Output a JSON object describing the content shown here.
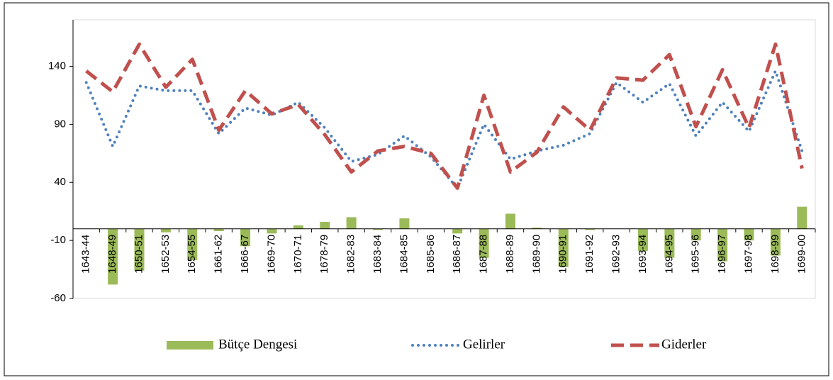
{
  "chart_data": {
    "type": "combo",
    "categories": [
      "1643-44",
      "1648-49",
      "1650-51",
      "1652-53",
      "1654-55",
      "1661-62",
      "1666-67",
      "1669-70",
      "1670-71",
      "1678-79",
      "1682-83",
      "1683-84",
      "1684-85",
      "1685-86",
      "1686-87",
      "1687-88",
      "1688-89",
      "1689-90",
      "1690-91",
      "1691-92",
      "1692-93",
      "1693-94",
      "1694-95",
      "1695-96",
      "1696-97",
      "1697-98",
      "1698-99",
      "1699-00"
    ],
    "series": [
      {
        "name": "Bütçe Dengesi",
        "type": "bar",
        "color": "#9bbb59",
        "values": [
          0,
          -48,
          -36,
          -3,
          -27,
          -2,
          -15,
          -4,
          3,
          6,
          10,
          -1,
          9,
          0,
          -4,
          -25,
          13,
          1,
          -33,
          -1,
          0,
          -19,
          -25,
          -10,
          -28,
          -10,
          -23,
          19
        ]
      },
      {
        "name": "Gelirler",
        "type": "line",
        "style": "dotted",
        "color": "#4f81bd",
        "values": [
          126,
          71,
          123,
          119,
          119,
          82,
          104,
          98,
          109,
          87,
          58,
          64,
          80,
          62,
          35,
          90,
          60,
          67,
          72,
          82,
          126,
          109,
          125,
          80,
          109,
          84,
          136,
          67
        ]
      },
      {
        "name": "Giderler",
        "type": "line",
        "style": "dashed",
        "color": "#c0504d",
        "values": [
          136,
          118,
          159,
          122,
          146,
          85,
          119,
          99,
          107,
          81,
          49,
          67,
          71,
          65,
          35,
          115,
          49,
          66,
          105,
          85,
          130,
          128,
          150,
          88,
          137,
          87,
          159,
          52
        ]
      }
    ],
    "ylim": [
      -60,
      180
    ],
    "yticks": [
      -60,
      -10,
      40,
      90,
      140
    ],
    "grid": false,
    "legend": "bottom"
  }
}
